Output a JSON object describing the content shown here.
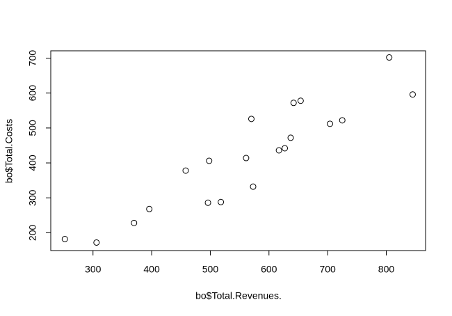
{
  "chart_data": {
    "type": "scatter",
    "x_label": "bo$Total.Revenues.",
    "y_label": "bo$Total.Costs",
    "x": [
      252,
      306,
      370,
      396,
      458,
      496,
      498,
      518,
      561,
      570,
      573,
      617,
      627,
      637,
      642,
      654,
      704,
      725,
      805,
      845
    ],
    "values": [
      182,
      172,
      228,
      268,
      378,
      286,
      406,
      288,
      414,
      526,
      332,
      436,
      442,
      472,
      572,
      578,
      512,
      522,
      702,
      596
    ],
    "color": "#000000",
    "xlim": [
      228,
      867
    ],
    "ylim": [
      149,
      721
    ],
    "xticks": [
      300,
      400,
      500,
      600,
      700,
      800
    ],
    "yticks": [
      200,
      300,
      400,
      500,
      600,
      700
    ]
  }
}
